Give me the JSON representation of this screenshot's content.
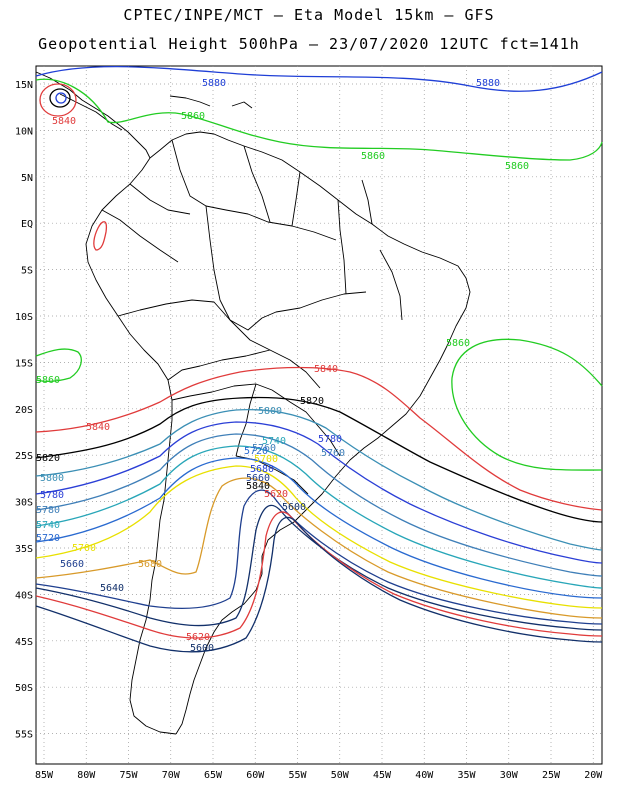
{
  "title": {
    "line1": "CPTEC/INPE/MCT –  Eta Model 15km – GFS",
    "line2": "Geopotential Height 500hPa – 23/07/2020 12UTC fct=141h"
  },
  "map": {
    "lat_labels": [
      "15N",
      "10N",
      "5N",
      "EQ",
      "5S",
      "10S",
      "15S",
      "20S",
      "25S",
      "30S",
      "35S",
      "40S",
      "45S",
      "50S",
      "55S"
    ],
    "lon_labels": [
      "85W",
      "80W",
      "75W",
      "70W",
      "65W",
      "60W",
      "55W",
      "50W",
      "45W",
      "40W",
      "35W",
      "30W",
      "25W",
      "20W"
    ]
  },
  "contours": [
    {
      "value": "5880",
      "color": "#1f3fd6"
    },
    {
      "value": "5860",
      "color": "#22cc22"
    },
    {
      "value": "5840",
      "color": "#e03b3b"
    },
    {
      "value": "5820",
      "color": "#000000"
    },
    {
      "value": "5800",
      "color": "#3b8fb5"
    },
    {
      "value": "5780",
      "color": "#2b3fd6"
    },
    {
      "value": "5760",
      "color": "#3f7fb8"
    },
    {
      "value": "5740",
      "color": "#28a6b8"
    },
    {
      "value": "5720",
      "color": "#2a6ad0"
    },
    {
      "value": "5700",
      "color": "#e8e000"
    },
    {
      "value": "5680",
      "color": "#d89a2a"
    },
    {
      "value": "5660",
      "color": "#1f3f8f"
    },
    {
      "value": "5640",
      "color": "#12306a"
    },
    {
      "value": "5620",
      "color": "#e03b3b"
    },
    {
      "value": "5600",
      "color": "#12306a"
    }
  ],
  "labels": {
    "l5880a": "5880",
    "l5880b": "5880",
    "l5860a": "5860",
    "l5860b": "5860",
    "l5860c": "5860",
    "l5860d": "5860",
    "l5860e": "5860",
    "l5840a": "5840",
    "l5840b": "5840",
    "l5840c": "5840",
    "l5840d": "5840",
    "l5820a": "5820",
    "l5820b": "5820",
    "l5800a": "5800",
    "l5800b": "5800",
    "l5780a": "5780",
    "l5780b": "5780",
    "l5780c": "5780",
    "l5760a": "5760",
    "l5760b": "5760",
    "l5740a": "5740",
    "l5740b": "5740",
    "l5720a": "5720",
    "l5720b": "5720",
    "l5700a": "5700",
    "l5700b": "5700",
    "l5680a": "5680",
    "l5680b": "5680",
    "l5660a": "5660",
    "l5660b": "5660",
    "l5640a": "5640",
    "l5640b": "5640",
    "l5640c": "5640",
    "l5620a": "5620",
    "l5620b": "5620",
    "l5600a": "5600",
    "l5600b": "5600"
  }
}
